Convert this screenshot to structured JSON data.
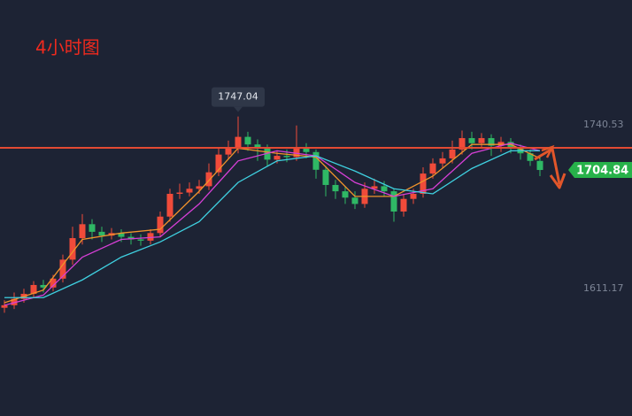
{
  "chart_data": {
    "type": "candlestick",
    "title": "4小时图",
    "up_color": "#f04b3a",
    "down_color": "#2fb865",
    "ylim": [
      1510.5,
      1839.1
    ],
    "yticks": [
      1611.17,
      1740.53
    ],
    "hline": {
      "value": 1722.3,
      "color": "#e34a33"
    },
    "ohlc": [
      [
        1596,
        1602,
        1592,
        1598
      ],
      [
        1598,
        1608,
        1595,
        1603
      ],
      [
        1603,
        1611,
        1600,
        1607
      ],
      [
        1607,
        1617,
        1604,
        1614
      ],
      [
        1614,
        1618,
        1608,
        1612
      ],
      [
        1612,
        1622,
        1609,
        1619
      ],
      [
        1619,
        1638,
        1616,
        1634
      ],
      [
        1634,
        1660,
        1630,
        1651
      ],
      [
        1651,
        1670,
        1646,
        1662
      ],
      [
        1662,
        1666,
        1650,
        1656
      ],
      [
        1656,
        1660,
        1648,
        1653
      ],
      [
        1653,
        1659,
        1650,
        1655
      ],
      [
        1655,
        1658,
        1648,
        1652
      ],
      [
        1652,
        1655,
        1646,
        1650
      ],
      [
        1650,
        1654,
        1645,
        1649
      ],
      [
        1649,
        1658,
        1646,
        1655
      ],
      [
        1655,
        1672,
        1652,
        1668
      ],
      [
        1668,
        1690,
        1664,
        1686
      ],
      [
        1686,
        1694,
        1682,
        1687
      ],
      [
        1687,
        1695,
        1684,
        1690
      ],
      [
        1690,
        1697,
        1686,
        1692
      ],
      [
        1692,
        1710,
        1689,
        1703
      ],
      [
        1703,
        1722,
        1700,
        1717
      ],
      [
        1717,
        1728,
        1713,
        1722
      ],
      [
        1722,
        1747.04,
        1718,
        1731
      ],
      [
        1731,
        1735,
        1720,
        1725
      ],
      [
        1725,
        1729,
        1712,
        1722
      ],
      [
        1722,
        1725,
        1708,
        1713
      ],
      [
        1713,
        1720,
        1710,
        1716
      ],
      [
        1716,
        1721,
        1711,
        1715
      ],
      [
        1715,
        1740,
        1712,
        1722
      ],
      [
        1722,
        1726,
        1714,
        1719
      ],
      [
        1719,
        1721,
        1698,
        1705
      ],
      [
        1705,
        1708,
        1684,
        1693
      ],
      [
        1693,
        1697,
        1682,
        1688
      ],
      [
        1688,
        1692,
        1678,
        1683
      ],
      [
        1683,
        1688,
        1674,
        1678
      ],
      [
        1678,
        1695,
        1675,
        1690
      ],
      [
        1690,
        1698,
        1686,
        1692
      ],
      [
        1692,
        1696,
        1684,
        1688
      ],
      [
        1688,
        1690,
        1664,
        1672
      ],
      [
        1672,
        1686,
        1668,
        1682
      ],
      [
        1682,
        1690,
        1678,
        1686
      ],
      [
        1686,
        1707,
        1683,
        1702
      ],
      [
        1702,
        1714,
        1698,
        1710
      ],
      [
        1710,
        1719,
        1706,
        1714
      ],
      [
        1714,
        1728,
        1710,
        1721
      ],
      [
        1721,
        1736,
        1717,
        1730
      ],
      [
        1730,
        1735,
        1721,
        1726
      ],
      [
        1726,
        1734,
        1722,
        1730
      ],
      [
        1730,
        1733,
        1716,
        1724
      ],
      [
        1724,
        1731,
        1719,
        1727
      ],
      [
        1727,
        1730,
        1718,
        1722
      ],
      [
        1722,
        1725,
        1713,
        1718
      ],
      [
        1718,
        1721,
        1708,
        1712
      ],
      [
        1712,
        1716,
        1700,
        1704.84
      ]
    ],
    "moving_averages": [
      {
        "color": "#f0932b",
        "x": [
          0,
          4,
          8,
          12,
          16,
          20,
          24,
          28,
          32,
          36,
          40,
          44,
          48,
          52,
          55
        ],
        "values": [
          1600,
          1610,
          1650,
          1655,
          1658,
          1688,
          1722,
          1718,
          1715,
          1684,
          1684,
          1700,
          1725,
          1725,
          1714
        ]
      },
      {
        "color": "#d63fd6",
        "x": [
          0,
          4,
          8,
          12,
          16,
          20,
          24,
          28,
          32,
          36,
          40,
          44,
          48,
          52,
          55
        ],
        "values": [
          1598,
          1606,
          1636,
          1650,
          1652,
          1678,
          1712,
          1720,
          1716,
          1695,
          1684,
          1690,
          1718,
          1726,
          1720
        ]
      },
      {
        "color": "#3fd0e0",
        "x": [
          0,
          4,
          8,
          12,
          16,
          20,
          24,
          28,
          32,
          36,
          40,
          44,
          48,
          52,
          55
        ],
        "values": [
          1604,
          1604,
          1618,
          1636,
          1648,
          1664,
          1695,
          1712,
          1716,
          1704,
          1690,
          1686,
          1706,
          1720,
          1720
        ]
      }
    ]
  }
}
